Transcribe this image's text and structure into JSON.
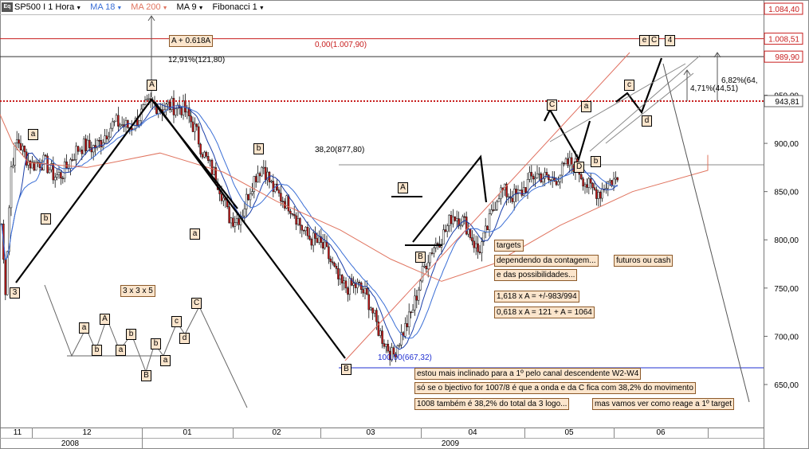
{
  "toolbar": {
    "logo": "Eq",
    "symbol": "SP500 I 1 Hora",
    "ma18": "MA 18",
    "ma200": "MA 200",
    "ma9": "MA 9",
    "fib": "Fibonacci 1"
  },
  "colors": {
    "price_line_red": "#c81e1e",
    "ma18": "#3b6fd6",
    "ma200": "#e0745f",
    "fib_blue": "#1f2fd1",
    "note_bg": "#fbe5cc",
    "candle_dark": "#101010",
    "candle_red": "#c41818"
  },
  "chart_data": {
    "type": "candlestick",
    "series_name": "SP500",
    "y_range": [
      600,
      1090
    ],
    "y_ticks": [
      "650,00",
      "700,00",
      "750,00",
      "800,00",
      "850,00",
      "900,00",
      "950,00"
    ],
    "x_months": [
      "11",
      "12",
      "01",
      "02",
      "03",
      "04",
      "05",
      "06"
    ],
    "x_years": [
      "2008",
      "2009"
    ],
    "price_path": [
      {
        "t": 0.0,
        "v": 890
      },
      {
        "t": 0.06,
        "v": 800
      },
      {
        "t": 0.17,
        "v": 745
      },
      {
        "t": 0.35,
        "v": 870
      },
      {
        "t": 0.55,
        "v": 905
      },
      {
        "t": 0.85,
        "v": 890
      },
      {
        "t": 1.2,
        "v": 868
      },
      {
        "t": 1.6,
        "v": 905
      },
      {
        "t": 2.0,
        "v": 930
      },
      {
        "t": 2.3,
        "v": 945
      },
      {
        "t": 2.6,
        "v": 915
      },
      {
        "t": 2.95,
        "v": 825
      },
      {
        "t": 3.1,
        "v": 830
      },
      {
        "t": 3.35,
        "v": 878
      },
      {
        "t": 3.6,
        "v": 835
      },
      {
        "t": 3.9,
        "v": 805
      },
      {
        "t": 4.2,
        "v": 760
      },
      {
        "t": 4.5,
        "v": 735
      },
      {
        "t": 4.72,
        "v": 672
      },
      {
        "t": 5.0,
        "v": 760
      },
      {
        "t": 5.3,
        "v": 830
      },
      {
        "t": 5.55,
        "v": 792
      },
      {
        "t": 5.75,
        "v": 843
      },
      {
        "t": 6.2,
        "v": 865
      },
      {
        "t": 6.6,
        "v": 875
      },
      {
        "t": 6.85,
        "v": 845
      },
      {
        "t": 7.3,
        "v": 895
      },
      {
        "t": 7.55,
        "v": 932
      },
      {
        "t": 7.8,
        "v": 900
      },
      {
        "t": 8.05,
        "v": 918
      },
      {
        "t": 8.2,
        "v": 885
      },
      {
        "t": 8.45,
        "v": 915
      }
    ],
    "ma200_path": [
      {
        "t": 0.0,
        "v": 930
      },
      {
        "t": 0.4,
        "v": 900
      },
      {
        "t": 0.9,
        "v": 880
      },
      {
        "t": 1.5,
        "v": 875
      },
      {
        "t": 2.2,
        "v": 890
      },
      {
        "t": 2.9,
        "v": 870
      },
      {
        "t": 3.5,
        "v": 840
      },
      {
        "t": 4.2,
        "v": 810
      },
      {
        "t": 4.7,
        "v": 780
      },
      {
        "t": 5.2,
        "v": 757
      },
      {
        "t": 5.7,
        "v": 775
      },
      {
        "t": 6.4,
        "v": 815
      },
      {
        "t": 7.2,
        "v": 850
      },
      {
        "t": 8.0,
        "v": 872
      },
      {
        "t": 8.45,
        "v": 888
      }
    ],
    "fib_levels": [
      {
        "label": "0,00(1.007,90)",
        "value": 1007.9
      },
      {
        "label": "38,20(877,80)",
        "value": 877.8
      },
      {
        "label": "100,00(667,32)",
        "value": 667.32
      }
    ],
    "right_axis_tags": [
      {
        "label": "1.084,40",
        "value": 1084.4
      },
      {
        "label": "1.008,51",
        "value": 1008.51
      },
      {
        "label": "989,90",
        "value": 989.9
      },
      {
        "label": "943,81",
        "value": 943.81
      }
    ],
    "wave_legs": [
      {
        "t": 0.15,
        "v": 743
      },
      {
        "t": 2.45,
        "v": 943
      },
      {
        "t": 4.7,
        "v": 668
      },
      {
        "t": 5.4,
        "v": 790
      },
      {
        "t": 6.35,
        "v": 880
      },
      {
        "t": 6.4,
        "v": 848
      }
    ],
    "wave_points": [
      {
        "t": 0.15,
        "v": 743
      },
      {
        "t": 2.45,
        "v": 943
      },
      {
        "t": 4.7,
        "v": 668
      }
    ],
    "projection_line": [
      {
        "t": 7.45,
        "v": 928
      },
      {
        "t": 7.95,
        "v": 895
      },
      {
        "t": 8.35,
        "v": 940
      },
      {
        "t": 8.5,
        "v": 905
      },
      {
        "t": 8.75,
        "v": 990
      }
    ]
  },
  "annotations": {
    "measure_top": "A + 0.618A",
    "measure_pct": "12,91%(121,80)",
    "proj_pct1": "6,82%(64,",
    "proj_pct2": "4,71%(44,51)",
    "wave_c_label": "C",
    "wave_e_label": "e",
    "wave_4_label": "4",
    "pattern_label": "3 x 3 x 5",
    "notes": {
      "targets": "targets",
      "dependendo": "dependendo da contagem...",
      "futuros": "futuros ou cash",
      "possibilidades": "e das possibilidades...",
      "calc1": "1,618 x A = +/-983/994",
      "calc2": "0,618 x A = 121 + A = 1064",
      "inclinado": "estou mais inclinado para a 1º pelo canal descendente W2-W4",
      "objectivo": "só se o bjectivo for 1007/8 é que a onda e da C fica com 38,2% do movimento",
      "logo": "1008 também é 38,2% do total da 3 logo...",
      "vamos": "mas vamos ver como reage a 1º target"
    },
    "wave_labels": {
      "w3": "3",
      "wa_top": "A",
      "wb_bottom": "B",
      "a1": "a",
      "b1": "b",
      "b2": "b",
      "a2": "a",
      "b3": "b",
      "A2": "A",
      "B2": "B",
      "C2": "C",
      "a3": "a",
      "b4": "b",
      "D": "D",
      "c1": "c",
      "d1": "d"
    },
    "pattern_labels": {
      "a1": "a",
      "b1": "b",
      "A": "A",
      "a2": "a",
      "b2": "b",
      "B": "B",
      "b3": "b",
      "a3": "a",
      "c": "c",
      "d": "d",
      "C": "C"
    }
  }
}
